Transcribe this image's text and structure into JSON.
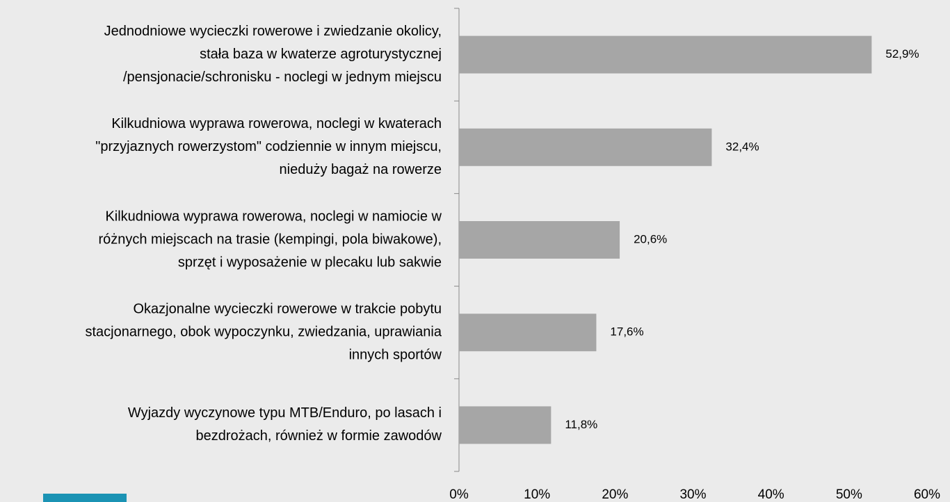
{
  "chart_data": {
    "type": "bar",
    "orientation": "horizontal",
    "categories": [
      [
        "Jednodniowe wycieczki rowerowe i zwiedzanie okolicy,",
        "stała baza w kwaterze agroturystycznej",
        "/pensjonacie/schronisku - noclegi w jednym miejscu"
      ],
      [
        "Kilkudniowa wyprawa rowerowa, noclegi w kwaterach",
        "\"przyjaznych rowerzystom\" codziennie w innym miejscu,",
        "nieduży bagaż na rowerze"
      ],
      [
        "Kilkudniowa wyprawa rowerowa, noclegi w namiocie w",
        "różnych miejscach na trasie (kempingi, pola biwakowe),",
        "sprzęt i wyposażenie w plecaku lub sakwie"
      ],
      [
        "Okazjonalne wycieczki rowerowe w trakcie pobytu",
        "stacjonarnego, obok wypoczynku, zwiedzania, uprawiania",
        "innych sportów"
      ],
      [
        "Wyjazdy wyczynowe typu MTB/Enduro, po lasach i",
        "bezdrożach, również w formie zawodów"
      ]
    ],
    "values": [
      52.9,
      32.4,
      20.6,
      17.6,
      11.8
    ],
    "value_labels": [
      "52,9%",
      "32,4%",
      "20,6%",
      "17,6%",
      "11,8%"
    ],
    "color": "#a6a6a6",
    "xlim": [
      0,
      60
    ],
    "xticks": [
      {
        "value": 0,
        "label": "0%"
      },
      {
        "value": 10,
        "label": "10%"
      },
      {
        "value": 20,
        "label": "20%"
      },
      {
        "value": 30,
        "label": "30%"
      },
      {
        "value": 40,
        "label": "40%"
      },
      {
        "value": 50,
        "label": "50%"
      },
      {
        "value": 60,
        "label": "60%"
      }
    ]
  }
}
